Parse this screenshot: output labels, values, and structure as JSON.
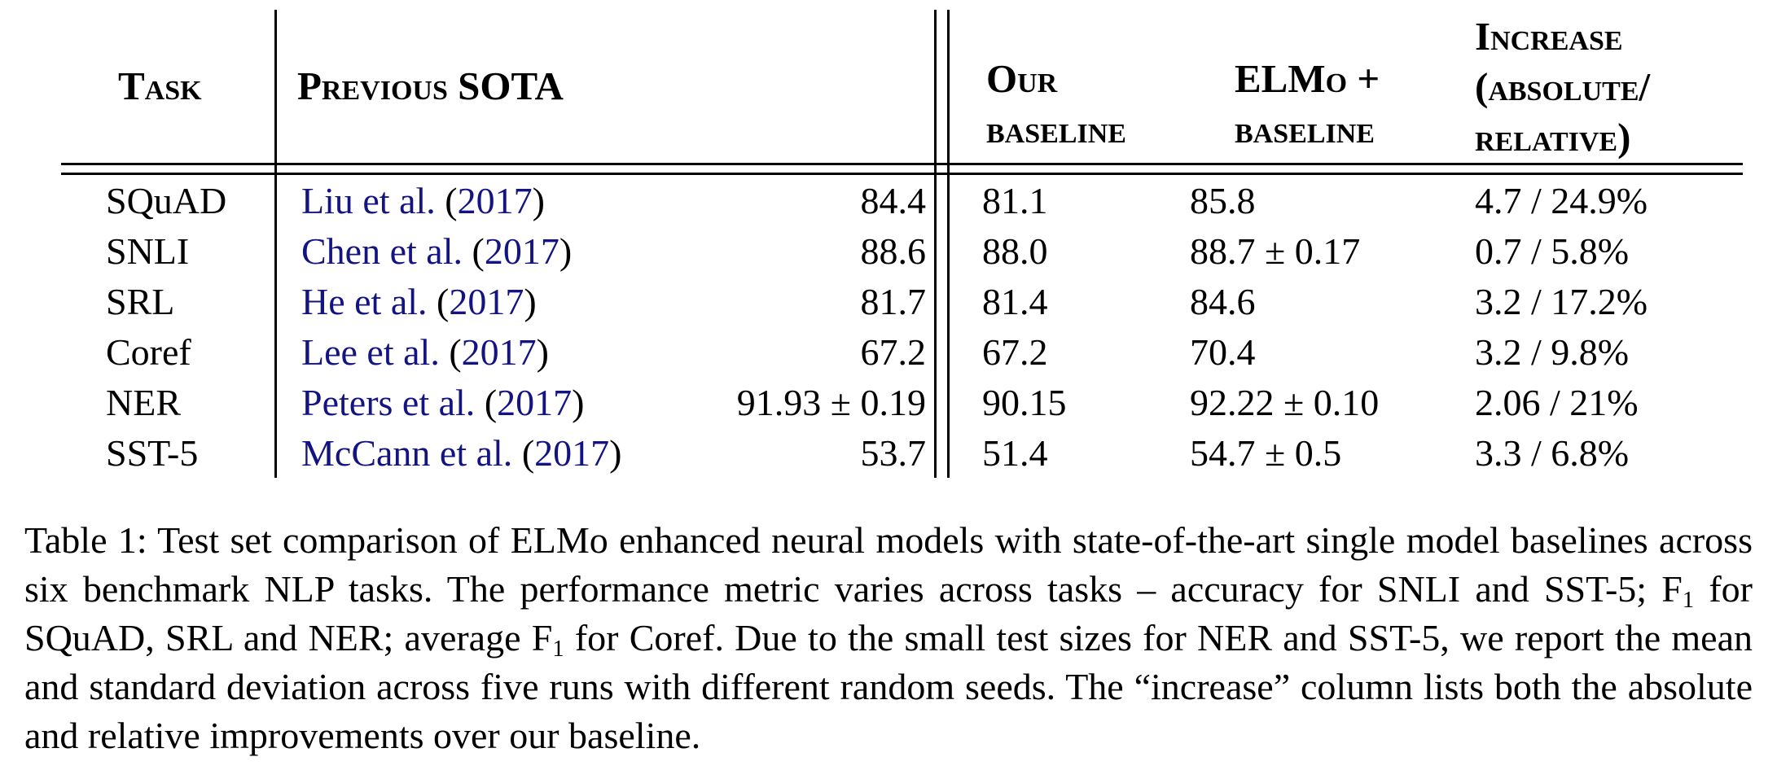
{
  "colors": {
    "citation_link": "#131382",
    "text": "#000000",
    "rule": "#000000",
    "background": "#ffffff"
  },
  "table": {
    "headers": {
      "task": "Task",
      "previous_sota": "Previous SOTA",
      "our_baseline": {
        "line1": "Our",
        "line2": "baseline"
      },
      "elmo_baseline": {
        "line1": "ELMo +",
        "line2": "baseline"
      },
      "increase": {
        "line1": "Increase",
        "line2": "(absolute/",
        "line3": "relative)"
      }
    },
    "rows": [
      {
        "task": "SQuAD",
        "sota_citation": {
          "authors": "Liu et al.",
          "year": "2017"
        },
        "sota_value": "84.4",
        "our_baseline": "81.1",
        "elmo_baseline": "85.8",
        "increase": "4.7 / 24.9%"
      },
      {
        "task": "SNLI",
        "sota_citation": {
          "authors": "Chen et al.",
          "year": "2017"
        },
        "sota_value": "88.6",
        "our_baseline": "88.0",
        "elmo_baseline": "88.7 ± 0.17",
        "increase": "0.7 / 5.8%"
      },
      {
        "task": "SRL",
        "sota_citation": {
          "authors": "He et al.",
          "year": "2017"
        },
        "sota_value": "81.7",
        "our_baseline": "81.4",
        "elmo_baseline": "84.6",
        "increase": "3.2 / 17.2%"
      },
      {
        "task": "Coref",
        "sota_citation": {
          "authors": "Lee et al.",
          "year": "2017"
        },
        "sota_value": "67.2",
        "our_baseline": "67.2",
        "elmo_baseline": "70.4",
        "increase": "3.2 / 9.8%"
      },
      {
        "task": "NER",
        "sota_citation": {
          "authors": "Peters et al.",
          "year": "2017"
        },
        "sota_value": "91.93 ± 0.19",
        "our_baseline": "90.15",
        "elmo_baseline": "92.22 ± 0.10",
        "increase": "2.06 / 21%"
      },
      {
        "task": "SST-5",
        "sota_citation": {
          "authors": "McCann et al.",
          "year": "2017"
        },
        "sota_value": "53.7",
        "our_baseline": "51.4",
        "elmo_baseline": "54.7 ± 0.5",
        "increase": "3.3 / 6.8%"
      }
    ]
  },
  "caption": {
    "segments": [
      {
        "text": "Table 1: Test set comparison of ELMo enhanced neural models with state-of-the-art single model baselines across six benchmark NLP tasks.  The performance metric varies across tasks – accuracy for SNLI and SST-5; F"
      },
      {
        "sub": "1"
      },
      {
        "text": " for SQuAD, SRL and NER; average F"
      },
      {
        "sub": "1"
      },
      {
        "text": " for Coref. Due to the small test sizes for NER and SST-5, we report the mean and standard deviation across five runs with different random seeds. The “increase” column lists both the absolute and relative improvements over our baseline."
      }
    ]
  }
}
